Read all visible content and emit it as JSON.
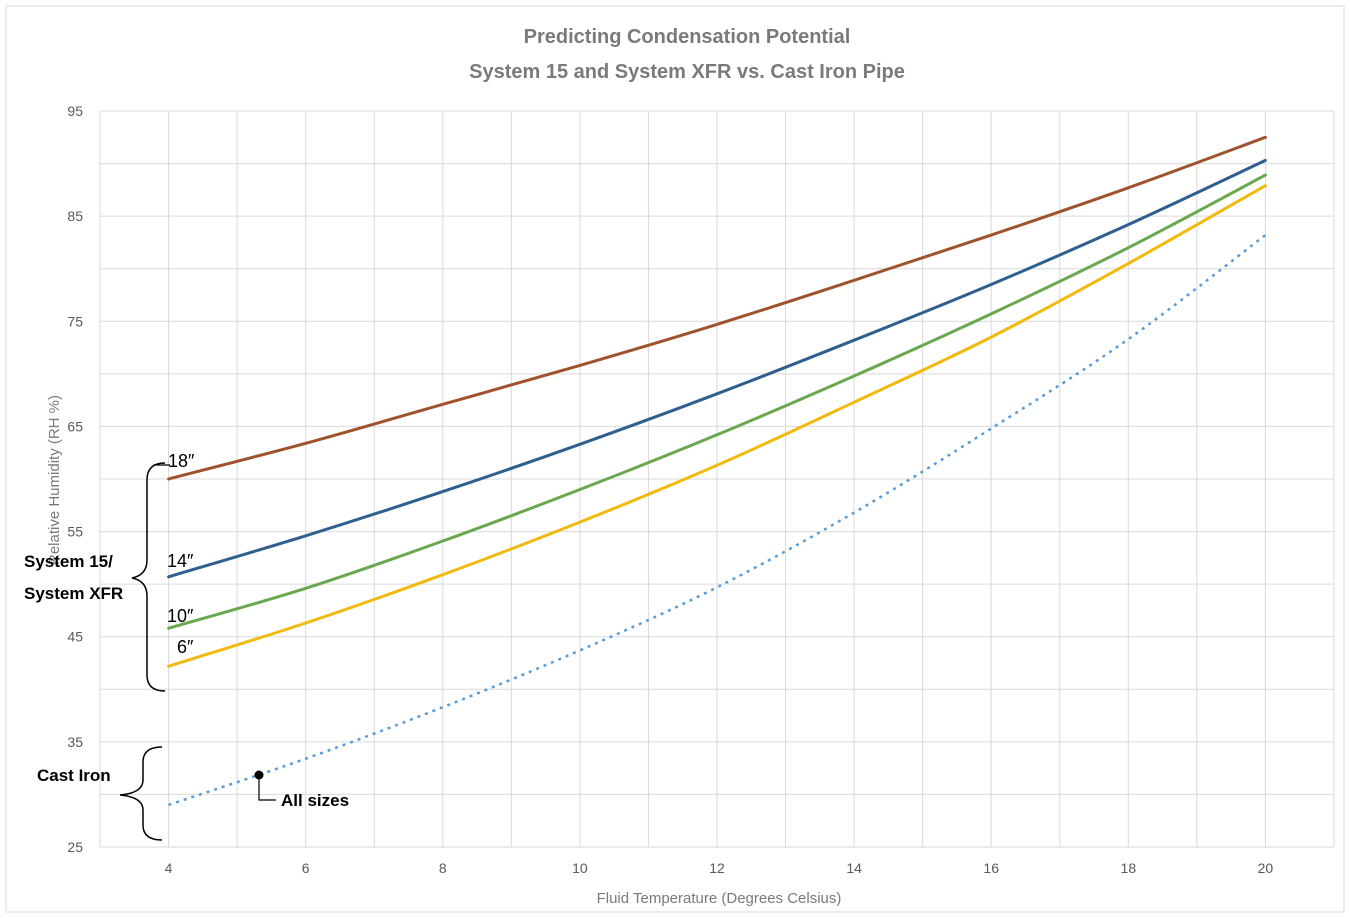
{
  "chart_data": {
    "type": "line",
    "title": "Predicting Condensation Potential",
    "subtitle": "System 15 and System XFR vs. Cast Iron Pipe",
    "xlabel": "Fluid Temperature (Degrees Celsius)",
    "ylabel": "Relative Humidity (RH %)",
    "xlim": [
      3,
      21
    ],
    "ylim": [
      25,
      95
    ],
    "x_ticks": [
      4,
      6,
      8,
      10,
      12,
      14,
      16,
      18,
      20
    ],
    "y_ticks": [
      25,
      35,
      45,
      55,
      65,
      75,
      85,
      95
    ],
    "grid": true,
    "x": [
      4,
      6,
      8,
      10,
      12,
      14,
      16,
      18,
      20
    ],
    "series": [
      {
        "name": "18″",
        "color": "#a0522d",
        "dashed": false,
        "values": [
          60.0,
          63.4,
          67.1,
          70.8,
          74.7,
          78.9,
          83.2,
          87.7,
          92.5
        ]
      },
      {
        "name": "14″",
        "color": "#2e5f8e",
        "dashed": false,
        "values": [
          50.7,
          54.6,
          58.8,
          63.3,
          68.1,
          73.2,
          78.5,
          84.2,
          90.3
        ]
      },
      {
        "name": "10″",
        "color": "#6aa84f",
        "dashed": false,
        "values": [
          45.8,
          49.6,
          54.1,
          59.0,
          64.2,
          69.8,
          75.7,
          82.0,
          88.9
        ]
      },
      {
        "name": "6″",
        "color": "#f2b90f",
        "dashed": false,
        "values": [
          42.2,
          46.3,
          50.9,
          55.9,
          61.3,
          67.3,
          73.5,
          80.5,
          87.9
        ]
      },
      {
        "name": "All sizes",
        "color": "#5b9bd5",
        "dashed": true,
        "values": [
          29.0,
          33.4,
          38.3,
          43.7,
          49.7,
          56.8,
          64.8,
          73.3,
          83.2
        ]
      }
    ],
    "annotations": {
      "group_system": [
        "System 15/",
        "System XFR"
      ],
      "group_cast_iron": "Cast Iron",
      "all_sizes": "All sizes"
    }
  }
}
